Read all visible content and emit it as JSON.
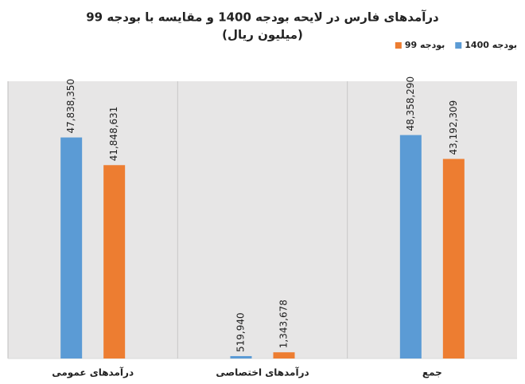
{
  "chart_data": {
    "type": "bar",
    "title": "درآمدهای فارس در لایحه بودجه 1400 و مقایسه با بودجه 99",
    "subtitle": "(میلیون ریال)",
    "categories": [
      "درآمدهای عمومی",
      "درآمدهای اختصاصی",
      "جمع"
    ],
    "series": [
      {
        "name": "بودجه 1400",
        "color": "#5b9bd5",
        "values": [
          47838350,
          519940,
          48358290
        ],
        "value_labels": [
          "47,838,350",
          "519,940",
          "48,358,290"
        ]
      },
      {
        "name": "بودجه 99",
        "color": "#ed7d31",
        "values": [
          41848631,
          1343678,
          43192309
        ],
        "value_labels": [
          "41,848,631",
          "1,343,678",
          "43,192,309"
        ]
      }
    ],
    "ylim": [
      0,
      60000000
    ],
    "legend": "top-right"
  }
}
